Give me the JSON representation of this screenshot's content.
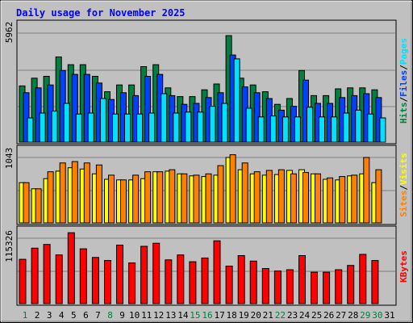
{
  "chart_data": {
    "type": "bar",
    "title": "Daily usage for November 2025",
    "categories": [
      "1",
      "2",
      "3",
      "4",
      "5",
      "6",
      "7",
      "8",
      "9",
      "10",
      "11",
      "12",
      "13",
      "14",
      "15",
      "16",
      "17",
      "18",
      "19",
      "20",
      "21",
      "22",
      "23",
      "24",
      "25",
      "26",
      "27",
      "28",
      "29",
      "30",
      "31"
    ],
    "weekend_days": [
      "1",
      "8",
      "15",
      "16",
      "22",
      "29",
      "30"
    ],
    "colors": {
      "hits": "#008040",
      "files": "#0040ff",
      "pages": "#00e0ff",
      "visits": "#ffff00",
      "sites": "#ff8000",
      "kbytes": "#ff0000",
      "title": "#0000ff",
      "weekend": "#008040",
      "weekday": "#000000"
    },
    "panels": [
      {
        "id": "top",
        "ymax_label": "5962",
        "ylim": [
          0,
          5962
        ],
        "legend": [
          "Hits",
          "Files",
          "Pages"
        ],
        "series": [
          {
            "name": "Hits",
            "color": "#008040",
            "values": [
              2900,
              3300,
              3400,
              4400,
              4000,
              4000,
              3400,
              2600,
              2950,
              2950,
              3900,
              4000,
              2800,
              2350,
              2350,
              2700,
              3000,
              5500,
              3300,
              2950,
              2600,
              1950,
              2250,
              3700,
              2400,
              2400,
              2750,
              2800,
              2800,
              2700,
              0
            ]
          },
          {
            "name": "Files",
            "color": "#0040ff",
            "values": [
              2550,
              2800,
              2950,
              3700,
              3500,
              3500,
              3050,
              2200,
              2550,
              2400,
              3400,
              3500,
              2400,
              1950,
              2000,
              2300,
              2550,
              4500,
              2850,
              2550,
              2250,
              1650,
              1850,
              3200,
              2000,
              2000,
              2300,
              2400,
              2500,
              2300,
              0
            ]
          },
          {
            "name": "Pages",
            "color": "#00e0ff",
            "values": [
              1250,
              1500,
              1600,
              2000,
              1450,
              1500,
              2250,
              1450,
              1450,
              1450,
              1500,
              2500,
              1500,
              1550,
              1550,
              1850,
              2000,
              4300,
              1750,
              1300,
              1350,
              1300,
              1300,
              1800,
              1300,
              1300,
              1500,
              1650,
              1450,
              1250,
              0
            ]
          }
        ]
      },
      {
        "id": "middle",
        "ymax_label": "1043",
        "ylim": [
          0,
          1043
        ],
        "legend": [
          "Sites",
          "Visits"
        ],
        "series": [
          {
            "name": "Visits",
            "color": "#ffff00",
            "values": [
              590,
              500,
              650,
              760,
              810,
              790,
              720,
              640,
              630,
              630,
              650,
              750,
              760,
              720,
              690,
              680,
              700,
              960,
              780,
              720,
              700,
              710,
              770,
              780,
              720,
              640,
              630,
              690,
              720,
              590,
              0
            ]
          },
          {
            "name": "Sites",
            "color": "#ff8000",
            "values": [
              590,
              500,
              750,
              880,
              900,
              880,
              850,
              700,
              630,
              700,
              750,
              750,
              780,
              720,
              700,
              720,
              840,
              1000,
              880,
              750,
              770,
              780,
              720,
              740,
              720,
              660,
              680,
              700,
              960,
              780,
              0
            ]
          }
        ]
      },
      {
        "id": "bottom",
        "ymax_label": "115326",
        "ylim": [
          0,
          115326
        ],
        "legend": [
          "KBytes"
        ],
        "series": [
          {
            "name": "KBytes",
            "color": "#ff0000",
            "values": [
              72000,
              90000,
              96000,
              79000,
              115000,
              89000,
              75000,
              70000,
              95000,
              66000,
              93000,
              98000,
              71000,
              79000,
              68000,
              74000,
              102000,
              61000,
              78000,
              69000,
              57000,
              53000,
              55000,
              78000,
              51000,
              51000,
              55000,
              62000,
              80000,
              70000,
              0
            ]
          }
        ]
      }
    ]
  }
}
